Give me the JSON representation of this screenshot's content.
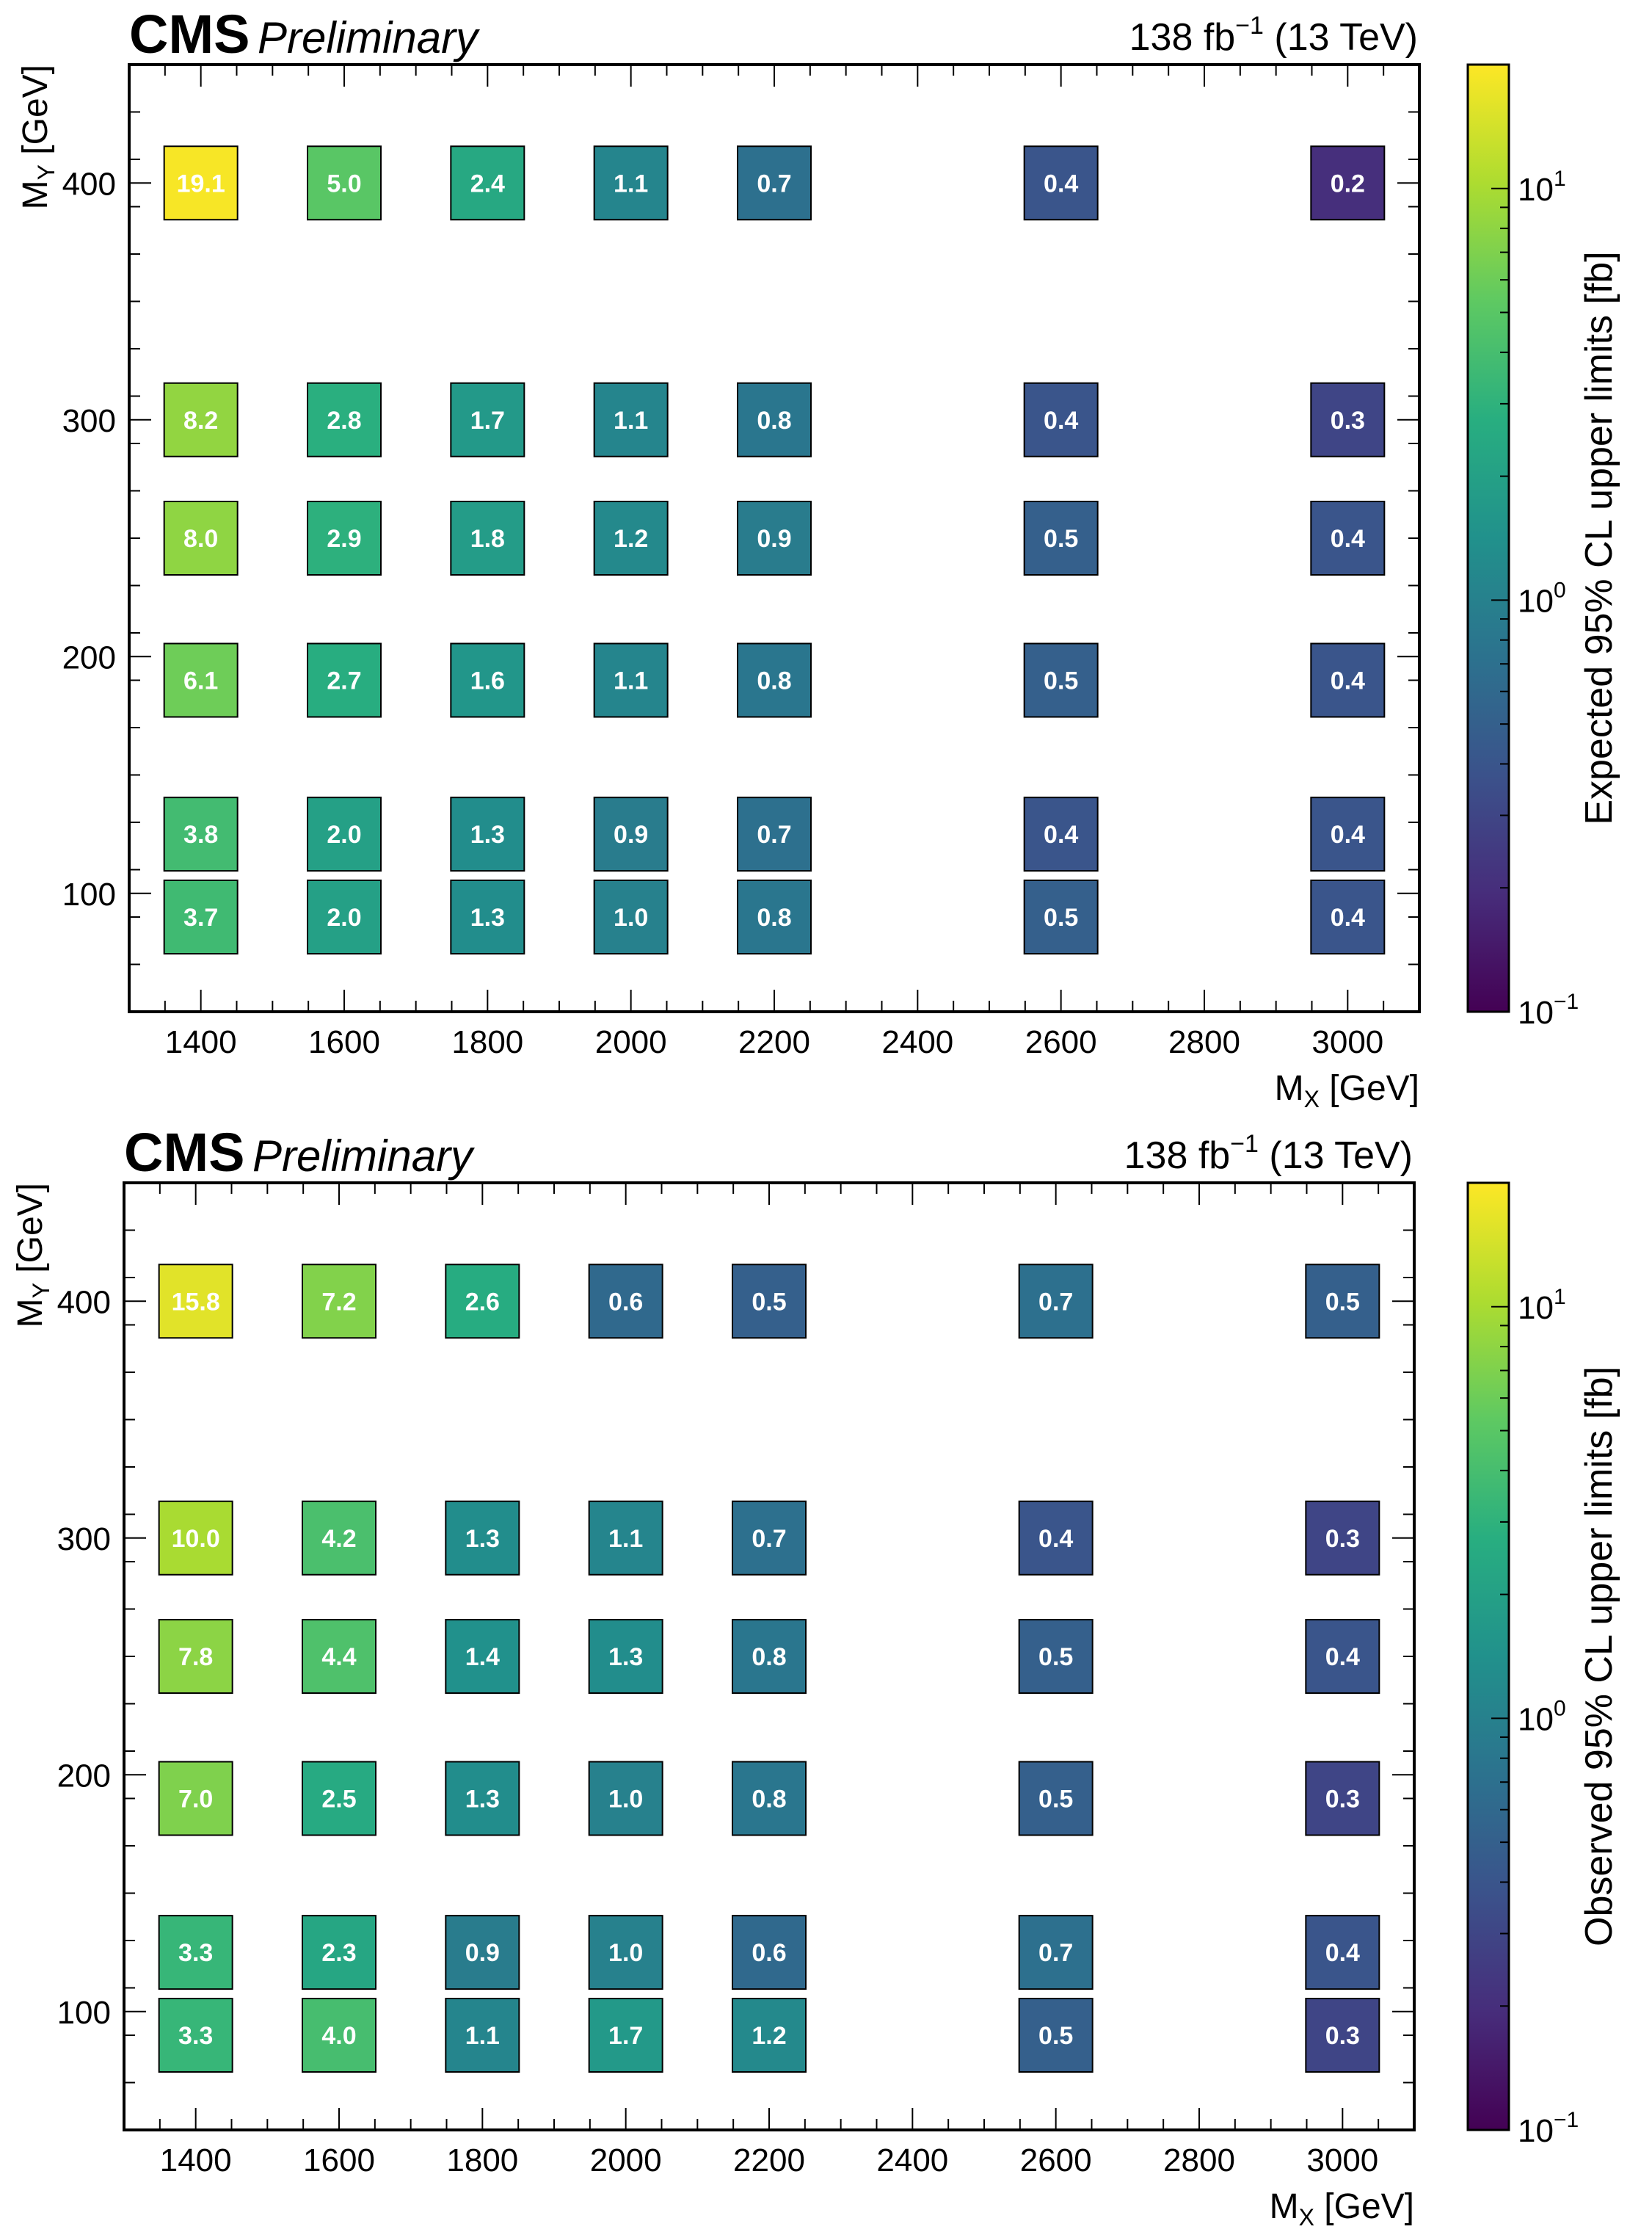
{
  "chart_data": [
    {
      "type": "heatmap",
      "experiment": "CMS",
      "status": "Preliminary",
      "lumi_value": "138 fb",
      "lumi_exp": "−1",
      "energy": "(13 TeV)",
      "xlabel_main": "M",
      "xlabel_sub": "X",
      "xlabel_unit": "[GeV]",
      "ylabel_main": "M",
      "ylabel_sub": "Y",
      "ylabel_unit": "[GeV]",
      "zlabel": "Expected 95% CL upper limits [fb]",
      "xlim": [
        1300,
        3100
      ],
      "ylim": [
        50,
        450
      ],
      "zlim": [
        0.1,
        20
      ],
      "zscale": "log",
      "x_ticks": [
        "1400",
        "1600",
        "1800",
        "2000",
        "2200",
        "2400",
        "2600",
        "2800",
        "3000"
      ],
      "y_ticks": [
        "100",
        "200",
        "300",
        "400"
      ],
      "z_tick_base": "10",
      "z_ticks": [
        {
          "exp": "1",
          "value": 10
        },
        {
          "exp": "0",
          "value": 1
        },
        {
          "exp": "−1",
          "value": 0.1
        }
      ],
      "cells": [
        {
          "x": 1400,
          "y": 400,
          "value": 19.1,
          "label": "19.1"
        },
        {
          "x": 1600,
          "y": 400,
          "value": 5.0,
          "label": "5.0"
        },
        {
          "x": 1800,
          "y": 400,
          "value": 2.4,
          "label": "2.4"
        },
        {
          "x": 2000,
          "y": 400,
          "value": 1.1,
          "label": "1.1"
        },
        {
          "x": 2200,
          "y": 400,
          "value": 0.7,
          "label": "0.7"
        },
        {
          "x": 2600,
          "y": 400,
          "value": 0.4,
          "label": "0.4"
        },
        {
          "x": 3000,
          "y": 400,
          "value": 0.2,
          "label": "0.2"
        },
        {
          "x": 1400,
          "y": 300,
          "value": 8.2,
          "label": "8.2"
        },
        {
          "x": 1600,
          "y": 300,
          "value": 2.8,
          "label": "2.8"
        },
        {
          "x": 1800,
          "y": 300,
          "value": 1.7,
          "label": "1.7"
        },
        {
          "x": 2000,
          "y": 300,
          "value": 1.1,
          "label": "1.1"
        },
        {
          "x": 2200,
          "y": 300,
          "value": 0.8,
          "label": "0.8"
        },
        {
          "x": 2600,
          "y": 300,
          "value": 0.4,
          "label": "0.4"
        },
        {
          "x": 3000,
          "y": 300,
          "value": 0.3,
          "label": "0.3"
        },
        {
          "x": 1400,
          "y": 250,
          "value": 8.0,
          "label": "8.0"
        },
        {
          "x": 1600,
          "y": 250,
          "value": 2.9,
          "label": "2.9"
        },
        {
          "x": 1800,
          "y": 250,
          "value": 1.8,
          "label": "1.8"
        },
        {
          "x": 2000,
          "y": 250,
          "value": 1.2,
          "label": "1.2"
        },
        {
          "x": 2200,
          "y": 250,
          "value": 0.9,
          "label": "0.9"
        },
        {
          "x": 2600,
          "y": 250,
          "value": 0.5,
          "label": "0.5"
        },
        {
          "x": 3000,
          "y": 250,
          "value": 0.4,
          "label": "0.4"
        },
        {
          "x": 1400,
          "y": 190,
          "value": 6.1,
          "label": "6.1"
        },
        {
          "x": 1600,
          "y": 190,
          "value": 2.7,
          "label": "2.7"
        },
        {
          "x": 1800,
          "y": 190,
          "value": 1.6,
          "label": "1.6"
        },
        {
          "x": 2000,
          "y": 190,
          "value": 1.1,
          "label": "1.1"
        },
        {
          "x": 2200,
          "y": 190,
          "value": 0.8,
          "label": "0.8"
        },
        {
          "x": 2600,
          "y": 190,
          "value": 0.5,
          "label": "0.5"
        },
        {
          "x": 3000,
          "y": 190,
          "value": 0.4,
          "label": "0.4"
        },
        {
          "x": 1400,
          "y": 125,
          "value": 3.8,
          "label": "3.8"
        },
        {
          "x": 1600,
          "y": 125,
          "value": 2.0,
          "label": "2.0"
        },
        {
          "x": 1800,
          "y": 125,
          "value": 1.3,
          "label": "1.3"
        },
        {
          "x": 2000,
          "y": 125,
          "value": 0.9,
          "label": "0.9"
        },
        {
          "x": 2200,
          "y": 125,
          "value": 0.7,
          "label": "0.7"
        },
        {
          "x": 2600,
          "y": 125,
          "value": 0.4,
          "label": "0.4"
        },
        {
          "x": 3000,
          "y": 125,
          "value": 0.4,
          "label": "0.4"
        },
        {
          "x": 1400,
          "y": 90,
          "value": 3.7,
          "label": "3.7"
        },
        {
          "x": 1600,
          "y": 90,
          "value": 2.0,
          "label": "2.0"
        },
        {
          "x": 1800,
          "y": 90,
          "value": 1.3,
          "label": "1.3"
        },
        {
          "x": 2000,
          "y": 90,
          "value": 1.0,
          "label": "1.0"
        },
        {
          "x": 2200,
          "y": 90,
          "value": 0.8,
          "label": "0.8"
        },
        {
          "x": 2600,
          "y": 90,
          "value": 0.5,
          "label": "0.5"
        },
        {
          "x": 3000,
          "y": 90,
          "value": 0.4,
          "label": "0.4"
        }
      ]
    },
    {
      "type": "heatmap",
      "experiment": "CMS",
      "status": "Preliminary",
      "lumi_value": "138 fb",
      "lumi_exp": "−1",
      "energy": "(13 TeV)",
      "xlabel_main": "M",
      "xlabel_sub": "X",
      "xlabel_unit": "[GeV]",
      "ylabel_main": "M",
      "ylabel_sub": "Y",
      "ylabel_unit": "[GeV]",
      "zlabel": "Observed 95% CL upper limits [fb]",
      "xlim": [
        1300,
        3100
      ],
      "ylim": [
        50,
        450
      ],
      "zlim": [
        0.1,
        20
      ],
      "zscale": "log",
      "x_ticks": [
        "1400",
        "1600",
        "1800",
        "2000",
        "2200",
        "2400",
        "2600",
        "2800",
        "3000"
      ],
      "y_ticks": [
        "100",
        "200",
        "300",
        "400"
      ],
      "z_tick_base": "10",
      "z_ticks": [
        {
          "exp": "1",
          "value": 10
        },
        {
          "exp": "0",
          "value": 1
        },
        {
          "exp": "−1",
          "value": 0.1
        }
      ],
      "cells": [
        {
          "x": 1400,
          "y": 400,
          "value": 15.8,
          "label": "15.8"
        },
        {
          "x": 1600,
          "y": 400,
          "value": 7.2,
          "label": "7.2"
        },
        {
          "x": 1800,
          "y": 400,
          "value": 2.6,
          "label": "2.6"
        },
        {
          "x": 2000,
          "y": 400,
          "value": 0.6,
          "label": "0.6"
        },
        {
          "x": 2200,
          "y": 400,
          "value": 0.5,
          "label": "0.5"
        },
        {
          "x": 2600,
          "y": 400,
          "value": 0.7,
          "label": "0.7"
        },
        {
          "x": 3000,
          "y": 400,
          "value": 0.5,
          "label": "0.5"
        },
        {
          "x": 1400,
          "y": 300,
          "value": 10.0,
          "label": "10.0"
        },
        {
          "x": 1600,
          "y": 300,
          "value": 4.2,
          "label": "4.2"
        },
        {
          "x": 1800,
          "y": 300,
          "value": 1.3,
          "label": "1.3"
        },
        {
          "x": 2000,
          "y": 300,
          "value": 1.1,
          "label": "1.1"
        },
        {
          "x": 2200,
          "y": 300,
          "value": 0.7,
          "label": "0.7"
        },
        {
          "x": 2600,
          "y": 300,
          "value": 0.4,
          "label": "0.4"
        },
        {
          "x": 3000,
          "y": 300,
          "value": 0.3,
          "label": "0.3"
        },
        {
          "x": 1400,
          "y": 250,
          "value": 7.8,
          "label": "7.8"
        },
        {
          "x": 1600,
          "y": 250,
          "value": 4.4,
          "label": "4.4"
        },
        {
          "x": 1800,
          "y": 250,
          "value": 1.4,
          "label": "1.4"
        },
        {
          "x": 2000,
          "y": 250,
          "value": 1.3,
          "label": "1.3"
        },
        {
          "x": 2200,
          "y": 250,
          "value": 0.8,
          "label": "0.8"
        },
        {
          "x": 2600,
          "y": 250,
          "value": 0.5,
          "label": "0.5"
        },
        {
          "x": 3000,
          "y": 250,
          "value": 0.4,
          "label": "0.4"
        },
        {
          "x": 1400,
          "y": 190,
          "value": 7.0,
          "label": "7.0"
        },
        {
          "x": 1600,
          "y": 190,
          "value": 2.5,
          "label": "2.5"
        },
        {
          "x": 1800,
          "y": 190,
          "value": 1.3,
          "label": "1.3"
        },
        {
          "x": 2000,
          "y": 190,
          "value": 1.0,
          "label": "1.0"
        },
        {
          "x": 2200,
          "y": 190,
          "value": 0.8,
          "label": "0.8"
        },
        {
          "x": 2600,
          "y": 190,
          "value": 0.5,
          "label": "0.5"
        },
        {
          "x": 3000,
          "y": 190,
          "value": 0.3,
          "label": "0.3"
        },
        {
          "x": 1400,
          "y": 125,
          "value": 3.3,
          "label": "3.3"
        },
        {
          "x": 1600,
          "y": 125,
          "value": 2.3,
          "label": "2.3"
        },
        {
          "x": 1800,
          "y": 125,
          "value": 0.9,
          "label": "0.9"
        },
        {
          "x": 2000,
          "y": 125,
          "value": 1.0,
          "label": "1.0"
        },
        {
          "x": 2200,
          "y": 125,
          "value": 0.6,
          "label": "0.6"
        },
        {
          "x": 2600,
          "y": 125,
          "value": 0.7,
          "label": "0.7"
        },
        {
          "x": 3000,
          "y": 125,
          "value": 0.4,
          "label": "0.4"
        },
        {
          "x": 1400,
          "y": 90,
          "value": 3.3,
          "label": "3.3"
        },
        {
          "x": 1600,
          "y": 90,
          "value": 4.0,
          "label": "4.0"
        },
        {
          "x": 1800,
          "y": 90,
          "value": 1.1,
          "label": "1.1"
        },
        {
          "x": 2000,
          "y": 90,
          "value": 1.7,
          "label": "1.7"
        },
        {
          "x": 2200,
          "y": 90,
          "value": 1.2,
          "label": "1.2"
        },
        {
          "x": 2600,
          "y": 90,
          "value": 0.5,
          "label": "0.5"
        },
        {
          "x": 3000,
          "y": 90,
          "value": 0.3,
          "label": "0.3"
        }
      ]
    }
  ]
}
